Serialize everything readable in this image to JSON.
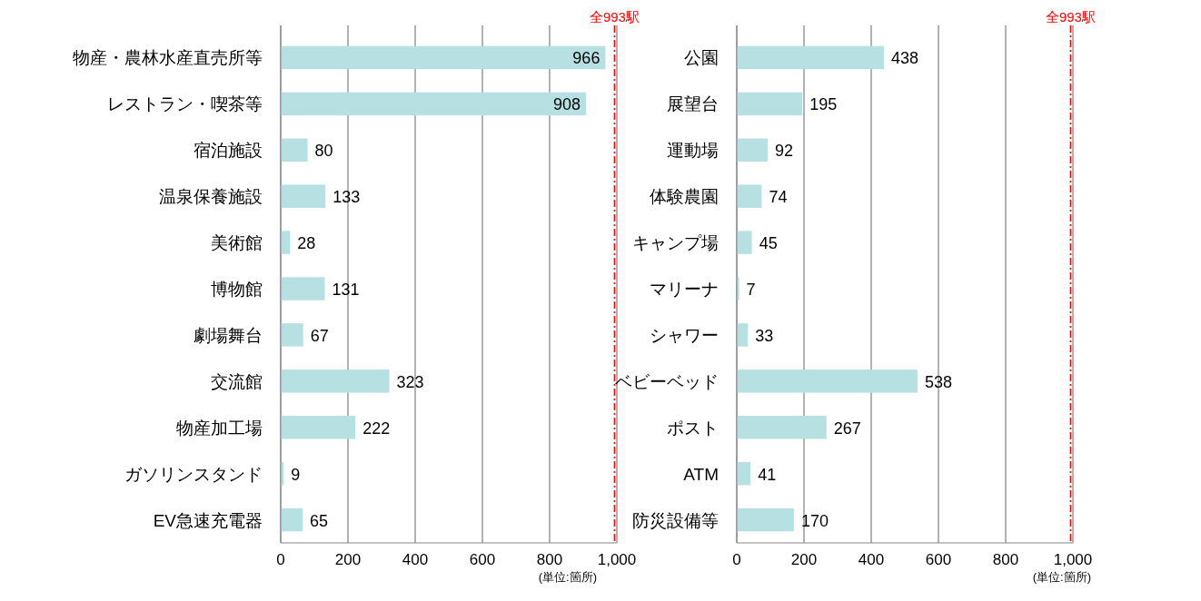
{
  "chart_data": [
    {
      "type": "bar",
      "orientation": "horizontal",
      "categories": [
        "物産・農林水産直売所等",
        "レストラン・喫茶等",
        "宿泊施設",
        "温泉保養施設",
        "美術館",
        "博物館",
        "劇場舞台",
        "交流館",
        "物産加工場",
        "ガソリンスタンド",
        "EV急速充電器"
      ],
      "values": [
        966,
        908,
        80,
        133,
        28,
        131,
        67,
        323,
        222,
        9,
        65
      ],
      "color": "#b7e0e3",
      "data_labels": true,
      "grid": "x",
      "xlim": [
        0,
        1000
      ],
      "xticks": [
        0,
        200,
        400,
        600,
        800,
        {
          "value": 1000,
          "label": "1,000"
        }
      ],
      "ref_lines": [
        {
          "axis": "x",
          "value": 993,
          "label": "全993駅",
          "color": "#ff0000",
          "line_style": "dashed"
        }
      ],
      "annotations": [
        "(単位:箇所)"
      ]
    },
    {
      "type": "bar",
      "orientation": "horizontal",
      "categories": [
        "公園",
        "展望台",
        "運動場",
        "体験農園",
        "キャンプ場",
        "マリーナ",
        "シャワー",
        "ベビーベッド",
        "ポスト",
        "ATM",
        "防災設備等"
      ],
      "values": [
        438,
        195,
        92,
        74,
        45,
        7,
        33,
        538,
        267,
        41,
        170
      ],
      "color": "#b7e0e3",
      "data_labels": true,
      "grid": "x",
      "xlim": [
        0,
        1000
      ],
      "xticks": [
        0,
        200,
        400,
        600,
        800,
        {
          "value": 1000,
          "label": "1,000"
        }
      ],
      "ref_lines": [
        {
          "axis": "x",
          "value": 993,
          "label": "全993駅",
          "color": "#ff0000",
          "line_style": "dashed"
        }
      ],
      "annotations": [
        "(単位:箇所)"
      ]
    }
  ]
}
